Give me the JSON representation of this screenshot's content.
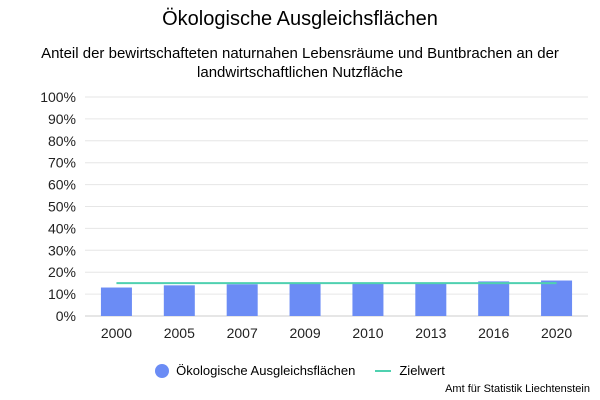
{
  "chart_data": {
    "type": "bar",
    "title": "Ökologische Ausgleichsflächen",
    "subtitle": "Anteil der bewirtschafteten naturnahen Lebensräume und Buntbrachen an der landwirtschaftlichen Nutzfläche",
    "categories": [
      "2000",
      "2005",
      "2007",
      "2009",
      "2010",
      "2013",
      "2016",
      "2020"
    ],
    "series": [
      {
        "name": "Ökologische Ausgleichsflächen",
        "type": "bar",
        "color": "#6b8cf5",
        "values": [
          13,
          14,
          14.5,
          14.8,
          14.8,
          14.8,
          15.8,
          16.2
        ]
      },
      {
        "name": "Zielwert",
        "type": "line",
        "color": "#4fd1b0",
        "values": [
          15,
          15,
          15,
          15,
          15,
          15,
          15,
          15
        ]
      }
    ],
    "y_ticks": [
      "0%",
      "10%",
      "20%",
      "30%",
      "40%",
      "50%",
      "60%",
      "70%",
      "80%",
      "90%",
      "100%"
    ],
    "ylim": [
      0,
      100
    ],
    "grid": true,
    "legend_position": "bottom",
    "credit": "Amt für Statistik Liechtenstein"
  }
}
